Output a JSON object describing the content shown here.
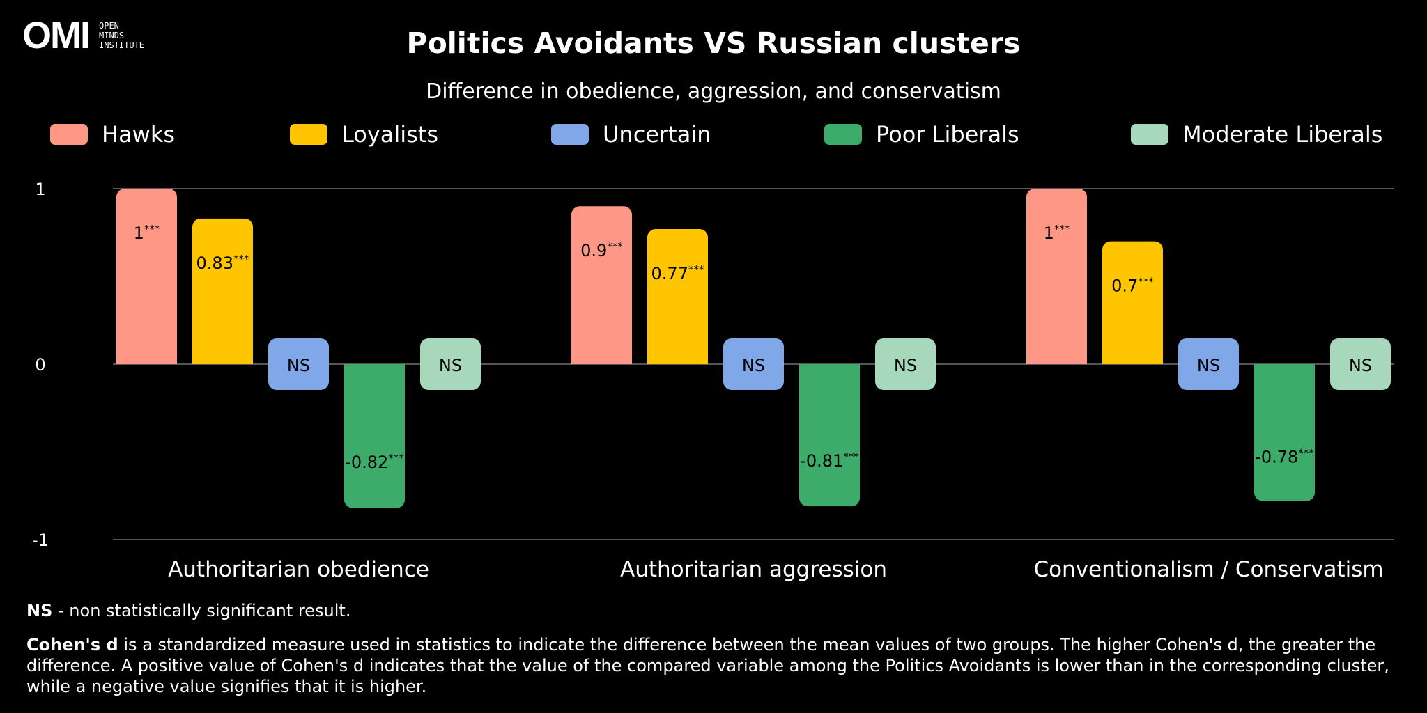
{
  "logo": {
    "mark": "OMI",
    "text": "OPEN\nMINDS\nINSTITUTE"
  },
  "header": {
    "title": "Politics Avoidants VS Russian clusters",
    "subtitle": "Difference in obedience, aggression, and conservatism"
  },
  "legend": [
    {
      "label": "Hawks",
      "color": "#FF9787"
    },
    {
      "label": "Loyalists",
      "color": "#FFC600"
    },
    {
      "label": "Uncertain",
      "color": "#80A8E8"
    },
    {
      "label": "Poor Liberals",
      "color": "#3DAB69"
    },
    {
      "label": "Moderate Liberals",
      "color": "#A8D8BC"
    }
  ],
  "chart_data": {
    "type": "bar",
    "title": "Politics Avoidants VS Russian clusters",
    "subtitle": "Difference in obedience, aggression, and conservatism",
    "categories": [
      "Authoritarian obedience",
      "Authoritarian aggression",
      "Conventionalism / Conservatism"
    ],
    "yticks": [
      "1",
      "0",
      "-1"
    ],
    "ylim": [
      -1,
      1
    ],
    "series": [
      {
        "name": "Hawks",
        "color": "#FF9787",
        "values": [
          1,
          0.9,
          1
        ],
        "labels": [
          "1",
          "0.9",
          "1"
        ],
        "significant": [
          true,
          true,
          true
        ]
      },
      {
        "name": "Loyalists",
        "color": "#FFC600",
        "values": [
          0.83,
          0.77,
          0.7
        ],
        "labels": [
          "0.83",
          "0.77",
          "0.7"
        ],
        "significant": [
          true,
          true,
          true
        ]
      },
      {
        "name": "Uncertain",
        "color": "#80A8E8",
        "values": [
          0,
          0,
          0
        ],
        "labels": [
          "NS",
          "NS",
          "NS"
        ],
        "significant": [
          false,
          false,
          false
        ]
      },
      {
        "name": "Poor Liberals",
        "color": "#3DAB69",
        "values": [
          -0.82,
          -0.81,
          -0.78
        ],
        "labels": [
          "-0.82",
          "-0.81",
          "-0.78"
        ],
        "significant": [
          true,
          true,
          true
        ]
      },
      {
        "name": "Moderate Liberals",
        "color": "#A8D8BC",
        "values": [
          0,
          0,
          0
        ],
        "labels": [
          "NS",
          "NS",
          "NS"
        ],
        "significant": [
          false,
          false,
          false
        ]
      }
    ],
    "significance_marker": "***"
  },
  "notes": {
    "ns_term": "NS",
    "ns_text": " - non statistically significant result.",
    "cohen_term": "Cohen's d",
    "cohen_text": " is a standardized measure used in statistics to indicate the difference between the mean values of two groups. The higher Cohen's d, the greater the difference. A positive value of Cohen's d indicates that the value of the compared variable among the Politics Avoidants is lower than in the corresponding cluster, while a negative value signifies that it is higher."
  }
}
